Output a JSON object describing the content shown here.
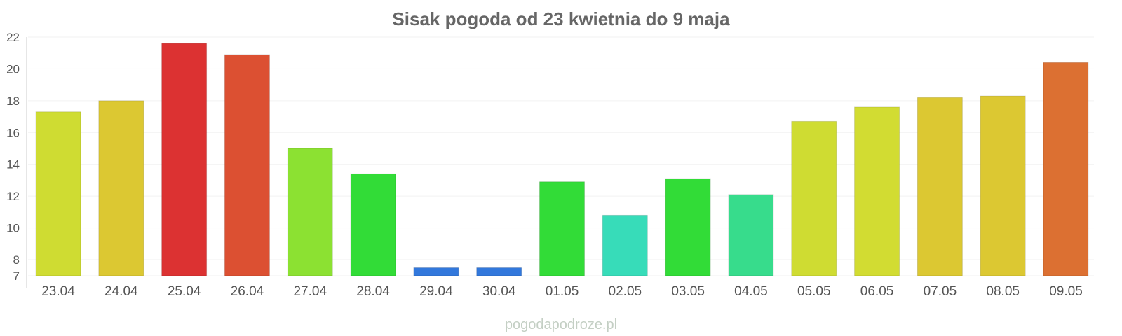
{
  "chart_data": {
    "type": "bar",
    "title": "Sisak pogoda od 23 kwietnia do 9 maja",
    "xlabel": "",
    "ylabel": "",
    "categories": [
      "23.04",
      "24.04",
      "25.04",
      "26.04",
      "27.04",
      "28.04",
      "29.04",
      "30.04",
      "01.05",
      "02.05",
      "03.05",
      "04.05",
      "05.05",
      "06.05",
      "07.05",
      "08.05",
      "09.05"
    ],
    "values": [
      17.3,
      18.0,
      21.6,
      20.9,
      15.0,
      13.4,
      7.5,
      7.5,
      12.9,
      10.8,
      13.1,
      12.1,
      16.7,
      17.6,
      18.2,
      18.3,
      20.4
    ],
    "colors": [
      "#cfdc32",
      "#dcc832",
      "#dc3232",
      "#dc5032",
      "#8ce132",
      "#32dc37",
      "#3278dc",
      "#3278dc",
      "#32dc37",
      "#37dcb9",
      "#32dc37",
      "#37dc8c",
      "#cfdc32",
      "#d2dc32",
      "#dcc832",
      "#dcc832",
      "#dc7032"
    ],
    "y_ticks": [
      7,
      8,
      10,
      12,
      14,
      16,
      18,
      20,
      22
    ],
    "ylim": [
      7,
      22
    ],
    "grid": true
  },
  "footer": {
    "watermark": "pogodapodroze.pl"
  }
}
